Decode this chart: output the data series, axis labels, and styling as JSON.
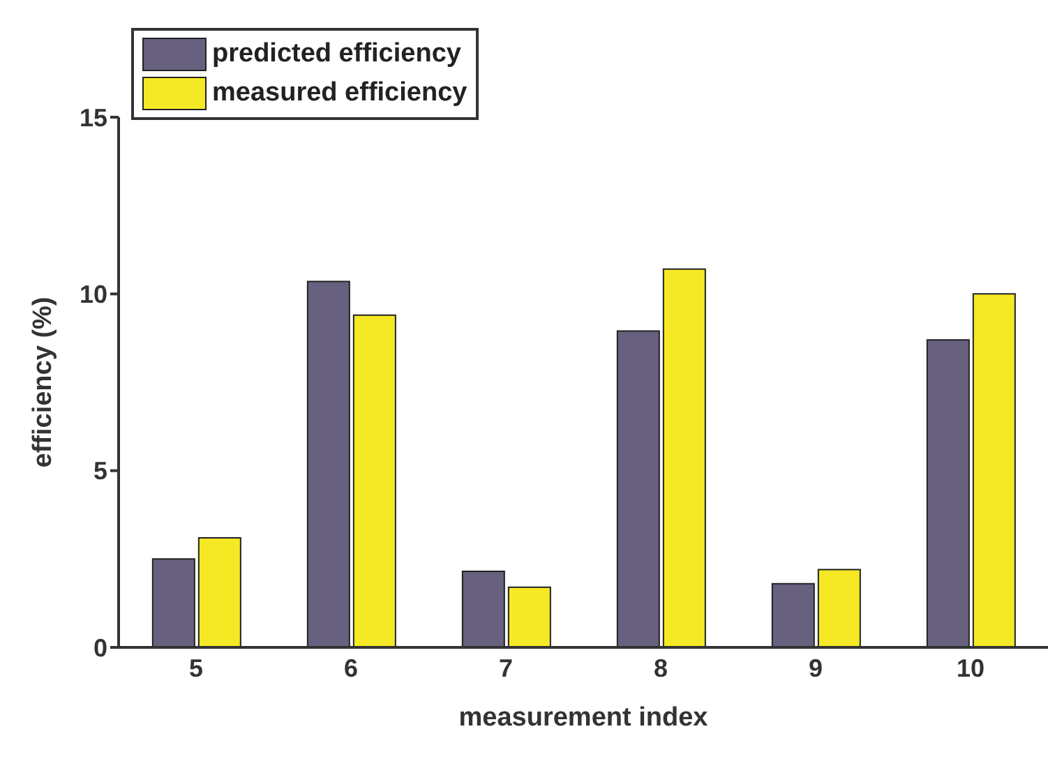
{
  "chart_data": {
    "type": "bar",
    "xlabel": "measurement index",
    "ylabel": "efficiency (%)",
    "categories": [
      "5",
      "6",
      "7",
      "8",
      "9",
      "10"
    ],
    "series": [
      {
        "name": "predicted efficiency",
        "color": "#68607f",
        "values": [
          2.5,
          10.35,
          2.15,
          8.95,
          1.8,
          8.7
        ]
      },
      {
        "name": "measured efficiency",
        "color": "#f5e926",
        "values": [
          3.1,
          9.4,
          1.7,
          10.7,
          2.2,
          10.0
        ]
      }
    ],
    "ylim": [
      0,
      15
    ],
    "yticks": [
      0,
      5,
      10,
      15
    ],
    "grid": false,
    "legend": "top left"
  }
}
